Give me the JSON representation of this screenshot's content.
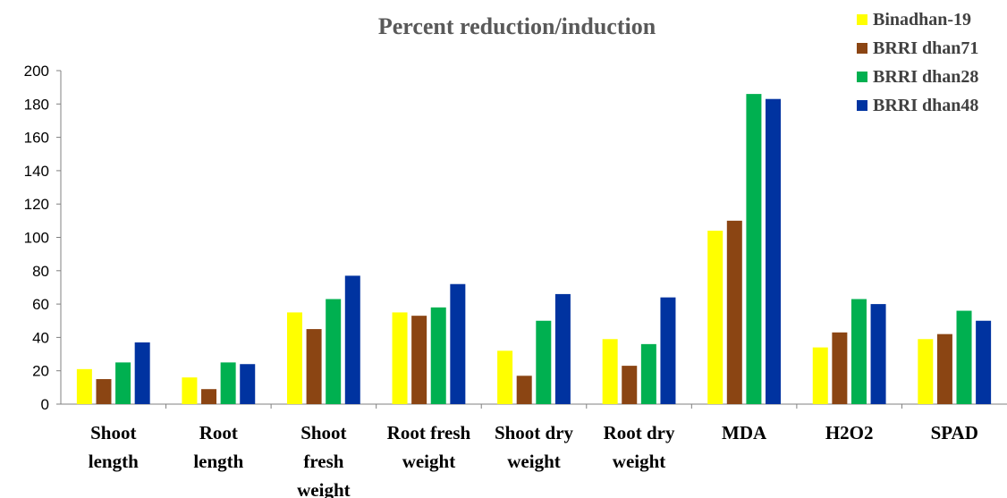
{
  "chart_data": {
    "type": "bar",
    "title": "Percent reduction/induction",
    "xlabel": "",
    "ylabel": "",
    "ylim": [
      0,
      200
    ],
    "yticks": [
      0,
      20,
      40,
      60,
      80,
      100,
      120,
      140,
      160,
      180,
      200
    ],
    "grid": false,
    "legend_position": "top-right",
    "categories": [
      [
        "Shoot",
        "length"
      ],
      [
        "Root",
        "length"
      ],
      [
        "Shoot",
        "fresh",
        "weight"
      ],
      [
        "Root fresh",
        "weight"
      ],
      [
        "Shoot dry",
        "weight"
      ],
      [
        "Root dry",
        "weight"
      ],
      [
        "MDA"
      ],
      [
        "H2O2"
      ],
      [
        "SPAD"
      ]
    ],
    "series": [
      {
        "name": "Binadhan-19",
        "color": "#FFFF00",
        "values": [
          21,
          16,
          55,
          55,
          32,
          39,
          104,
          34,
          39
        ]
      },
      {
        "name": "BRRI dhan71",
        "color": "#8B4513",
        "values": [
          15,
          9,
          45,
          53,
          17,
          23,
          110,
          43,
          42
        ]
      },
      {
        "name": "BRRI dhan28",
        "color": "#00B050",
        "values": [
          25,
          25,
          63,
          58,
          50,
          36,
          186,
          63,
          56
        ]
      },
      {
        "name": "BRRI dhan48",
        "color": "#0033A0",
        "values": [
          37,
          24,
          77,
          72,
          66,
          64,
          183,
          60,
          50
        ]
      }
    ]
  }
}
